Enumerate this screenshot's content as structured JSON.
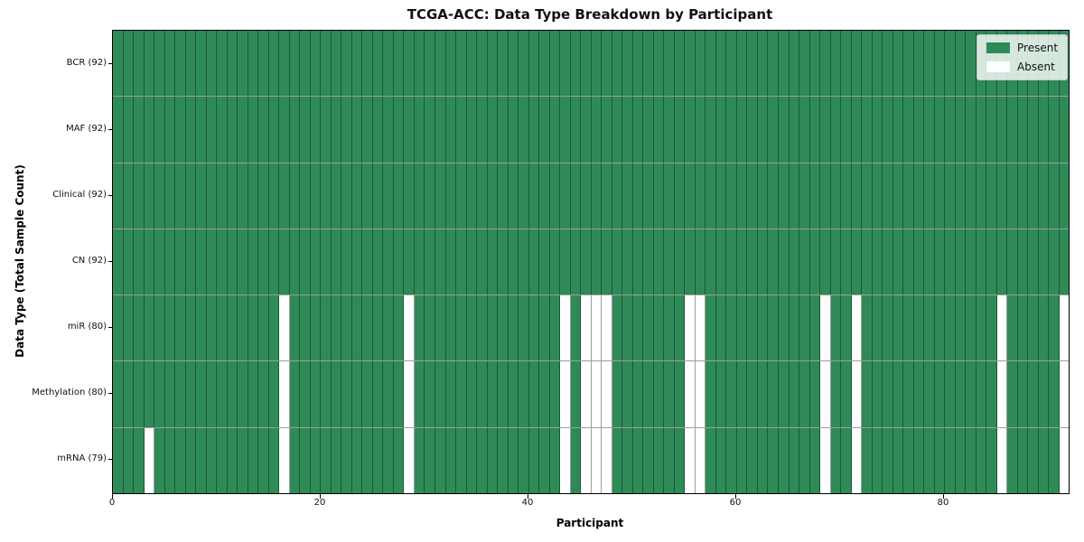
{
  "chart_data": {
    "type": "heatmap",
    "title": "TCGA-ACC: Data Type Breakdown by Participant",
    "xlabel": "Participant",
    "ylabel": "Data Type (Total Sample Count)",
    "n_participants": 92,
    "x_ticks": [
      0,
      20,
      40,
      60,
      80
    ],
    "x_range": [
      0,
      92
    ],
    "grid": true,
    "rows": [
      {
        "label": "BCR (92)",
        "total_present": 92,
        "absent_participants": []
      },
      {
        "label": "MAF (92)",
        "total_present": 92,
        "absent_participants": []
      },
      {
        "label": "Clinical (92)",
        "total_present": 92,
        "absent_participants": []
      },
      {
        "label": "CN (92)",
        "total_present": 92,
        "absent_participants": []
      },
      {
        "label": "miR (80)",
        "total_present": 80,
        "absent_participants": [
          16,
          28,
          43,
          45,
          46,
          47,
          55,
          56,
          68,
          71,
          85,
          91
        ]
      },
      {
        "label": "Methylation (80)",
        "total_present": 80,
        "absent_participants": [
          16,
          28,
          43,
          45,
          46,
          47,
          55,
          56,
          68,
          71,
          85,
          91
        ]
      },
      {
        "label": "mRNA (79)",
        "total_present": 79,
        "absent_participants": [
          3,
          16,
          28,
          43,
          45,
          46,
          47,
          55,
          56,
          68,
          71,
          85,
          91
        ]
      }
    ],
    "legend": {
      "position": "upper right",
      "entries": [
        {
          "label": "Present",
          "color": "#2e8b57"
        },
        {
          "label": "Absent",
          "color": "#ffffff"
        }
      ]
    },
    "colors": {
      "present": "#2e8b57",
      "absent": "#ffffff",
      "gridline": "rgba(0,0,0,0.38)",
      "border": "#000000"
    }
  }
}
